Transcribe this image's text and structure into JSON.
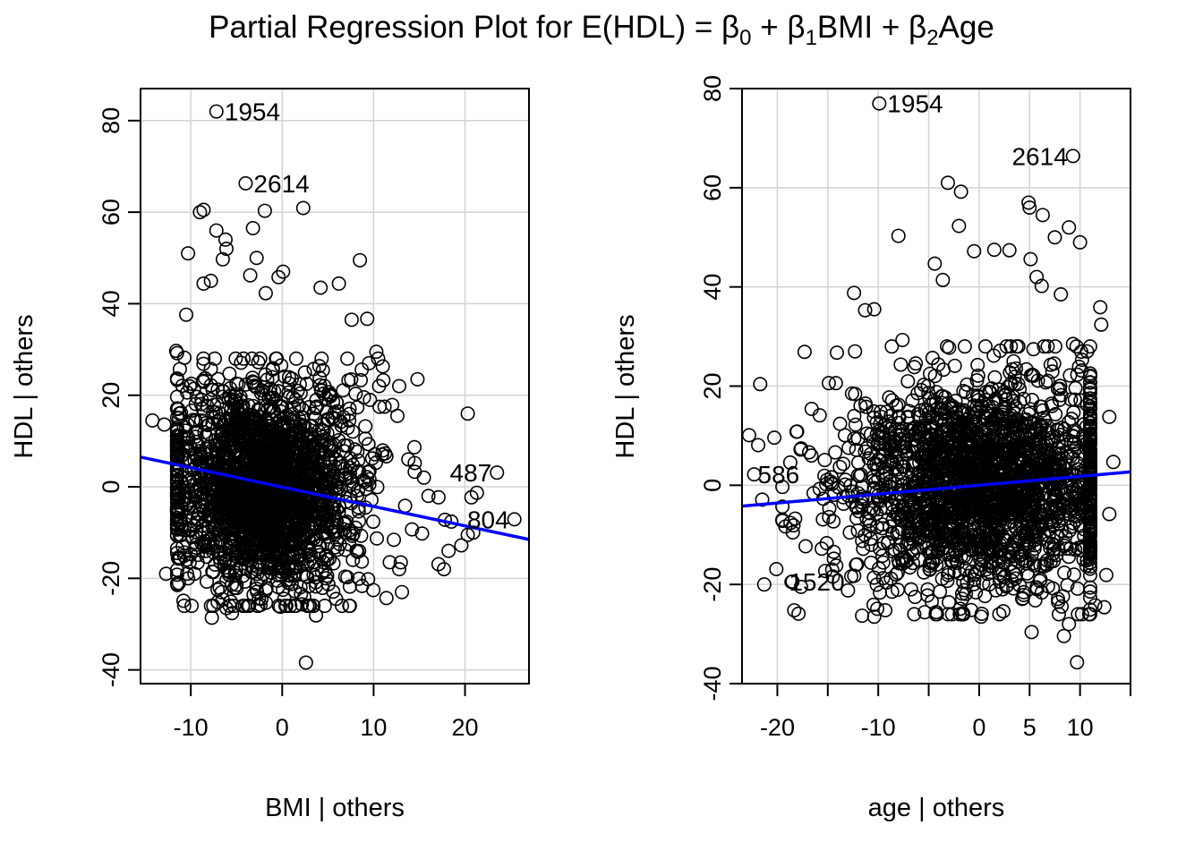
{
  "title_parts": {
    "prefix": "Partial Regression Plot for E(HDL) = ",
    "beta": "β",
    "sub0": "0",
    "plus1": " + ",
    "sub1": "1",
    "bmi": "BMI + ",
    "sub2": "2",
    "age": "Age"
  },
  "colors": {
    "points": "#000000",
    "fit_line": "#0000ff",
    "grid": "#d3d3d3",
    "frame": "#000000"
  },
  "chart_data": [
    {
      "type": "scatter",
      "xlabel": "BMI | others",
      "ylabel": "HDL  | others",
      "xlim": [
        -15.5,
        27
      ],
      "ylim": [
        -43,
        87
      ],
      "xticks": [
        -10,
        0,
        10,
        20
      ],
      "yticks": [
        -40,
        -20,
        0,
        20,
        40,
        60,
        80
      ],
      "grid": true,
      "fit_line": {
        "x": [
          -15.5,
          27
        ],
        "y": [
          6.5,
          -11.5
        ],
        "color": "#0000ff"
      },
      "labeled_points": [
        {
          "label": "1954",
          "x": -7.2,
          "y": 82.0
        },
        {
          "label": "2614",
          "x": -4.0,
          "y": 66.3
        },
        {
          "label": "487",
          "x": 23.5,
          "y": 3.1
        },
        {
          "label": "804",
          "x": 25.4,
          "y": -7.1
        }
      ],
      "cloud": {
        "center": [
          -2,
          0
        ],
        "spread": [
          5.0,
          11.0
        ],
        "count": 2200,
        "seed": 17
      },
      "extra_points": [
        [
          -9,
          60
        ],
        [
          -8.6,
          60.5
        ],
        [
          -10.3,
          51
        ],
        [
          -7.2,
          56
        ],
        [
          -6.2,
          54
        ],
        [
          -6.1,
          52
        ],
        [
          -6.5,
          49.7
        ],
        [
          -2.8,
          50
        ],
        [
          -1.9,
          60.3
        ],
        [
          2.3,
          60.9
        ],
        [
          -3.2,
          56.5
        ],
        [
          0.1,
          47
        ],
        [
          -0.4,
          45.8
        ],
        [
          8.5,
          49.5
        ],
        [
          4.2,
          43.5
        ],
        [
          6.2,
          44.4
        ],
        [
          -7.8,
          45
        ],
        [
          -8.6,
          44.4
        ],
        [
          -3.5,
          46.2
        ],
        [
          -1.8,
          42.3
        ],
        [
          7.6,
          36.5
        ],
        [
          9.3,
          36.7
        ],
        [
          10.3,
          29.5
        ],
        [
          11,
          26.3
        ],
        [
          14.8,
          23.5
        ],
        [
          12.8,
          22
        ],
        [
          10.6,
          22
        ],
        [
          9.5,
          27
        ],
        [
          8.7,
          25.6
        ],
        [
          9.6,
          19
        ],
        [
          11.2,
          17.5
        ],
        [
          12.6,
          15.5
        ],
        [
          13.8,
          6
        ],
        [
          14.5,
          5.2
        ],
        [
          15.5,
          2
        ],
        [
          16,
          -2
        ],
        [
          17.1,
          -2.3
        ],
        [
          17.8,
          -7.2
        ],
        [
          18.5,
          -7.6
        ],
        [
          19.6,
          -12.8
        ],
        [
          20.3,
          -10.5
        ],
        [
          20.9,
          -10
        ],
        [
          20.3,
          16
        ],
        [
          20.7,
          -2.3
        ],
        [
          21.3,
          -1.3
        ],
        [
          17.1,
          -16.9
        ],
        [
          17.7,
          -18
        ],
        [
          18.2,
          -14
        ],
        [
          15.3,
          -10.2
        ],
        [
          14.2,
          -9.3
        ],
        [
          13.1,
          -23
        ],
        [
          11.4,
          -24.3
        ],
        [
          12.8,
          -18
        ],
        [
          -14.2,
          14.5
        ],
        [
          -12.9,
          13.6
        ],
        [
          -12.7,
          -19
        ],
        [
          -10.4,
          -19
        ],
        [
          -10.3,
          -20
        ],
        [
          -11.1,
          -10.5
        ],
        [
          -11.5,
          3.5
        ],
        [
          -11.6,
          29.7
        ],
        [
          -11.5,
          29.2
        ],
        [
          -10.7,
          28.2
        ],
        [
          -11.2,
          25.7
        ],
        [
          -10.5,
          37.6
        ],
        [
          -11.3,
          15
        ],
        [
          -10.8,
          11
        ],
        [
          -7.7,
          -28.6
        ],
        [
          -6.1,
          -26.5
        ],
        [
          -5.5,
          -27.6
        ],
        [
          -0.2,
          -26.2
        ],
        [
          2.6,
          -38.4
        ],
        [
          3.7,
          -28.1
        ],
        [
          5.9,
          -24.5
        ],
        [
          7.4,
          -21.8
        ],
        [
          9.4,
          -20.2
        ]
      ]
    },
    {
      "type": "scatter",
      "xlabel": "age | others",
      "ylabel": "HDL  | others",
      "xlim": [
        -23.5,
        15
      ],
      "ylim": [
        -40,
        80
      ],
      "xticks": [
        -20,
        -10,
        0,
        5,
        10
      ],
      "extra_ticks": [
        -15,
        -5,
        15
      ],
      "yticks": [
        -40,
        -20,
        0,
        20,
        40,
        60,
        80
      ],
      "grid": true,
      "fit_line": {
        "x": [
          -23.5,
          15
        ],
        "y": [
          -4.2,
          2.7
        ],
        "color": "#0000ff"
      },
      "labeled_points": [
        {
          "label": "1954",
          "x": -9.9,
          "y": 77.0
        },
        {
          "label": "2614",
          "x": 9.3,
          "y": 66.4
        },
        {
          "label": "586",
          "x": -22.3,
          "y": 2.2
        },
        {
          "label": "1520",
          "x": -18.5,
          "y": -19.4
        }
      ],
      "cloud": {
        "center": [
          0.5,
          0
        ],
        "spread": [
          7.0,
          10.5
        ],
        "count": 2200,
        "seed": 29
      },
      "extra_points": [
        [
          -3.1,
          61
        ],
        [
          -1.8,
          59.2
        ],
        [
          -2,
          52.3
        ],
        [
          -8,
          50.3
        ],
        [
          4.9,
          57
        ],
        [
          5,
          56
        ],
        [
          6.3,
          54.5
        ],
        [
          8.9,
          52
        ],
        [
          10,
          49
        ],
        [
          7.5,
          50
        ],
        [
          -4.4,
          44.7
        ],
        [
          -0.5,
          47.2
        ],
        [
          1.5,
          47.5
        ],
        [
          3,
          47.4
        ],
        [
          5.1,
          45.6
        ],
        [
          -3.6,
          41.4
        ],
        [
          5.7,
          42
        ],
        [
          6.2,
          40.2
        ],
        [
          -12.4,
          38.8
        ],
        [
          8.1,
          38.5
        ],
        [
          -11.3,
          35.3
        ],
        [
          -10.4,
          35.5
        ],
        [
          -7.6,
          29.3
        ],
        [
          -12.3,
          27
        ],
        [
          -17.3,
          26.9
        ],
        [
          -21.7,
          20.4
        ],
        [
          -14.9,
          20.6
        ],
        [
          -14.2,
          20.6
        ],
        [
          -12.6,
          18.5
        ],
        [
          -16.6,
          15.4
        ],
        [
          -22.8,
          10.1
        ],
        [
          -21.9,
          8.1
        ],
        [
          -20.3,
          9.6
        ],
        [
          -18.1,
          10.8
        ],
        [
          -17.7,
          7.2
        ],
        [
          -15.3,
          5.1
        ],
        [
          -13.8,
          3.7
        ],
        [
          -12,
          2
        ],
        [
          -21.5,
          -2.9
        ],
        [
          -19.2,
          -8.3
        ],
        [
          -18.7,
          -7.6
        ],
        [
          -17.2,
          -12.3
        ],
        [
          -15.6,
          -12.8
        ],
        [
          -14.4,
          -14.8
        ],
        [
          -20.1,
          -16.9
        ],
        [
          -18.6,
          -19.5
        ],
        [
          -17.9,
          -25.9
        ],
        [
          -21.3,
          -20
        ],
        [
          -14.5,
          -18.4
        ],
        [
          -13,
          -21.2
        ],
        [
          -11.6,
          -26.3
        ],
        [
          -10.4,
          -26.5
        ],
        [
          -10.1,
          -24.9
        ],
        [
          -9.3,
          -25.2
        ],
        [
          -5.4,
          -25.6
        ],
        [
          -3,
          -23.6
        ],
        [
          -1.6,
          -25.8
        ],
        [
          0.2,
          -26.5
        ],
        [
          2.4,
          -25.4
        ],
        [
          5.2,
          -29.6
        ],
        [
          8.9,
          -28
        ],
        [
          8.4,
          -30.4
        ],
        [
          9.7,
          -35.7
        ],
        [
          12.4,
          -24.6
        ],
        [
          12.6,
          -18.1
        ],
        [
          11.5,
          -24.2
        ],
        [
          12.9,
          -5.8
        ],
        [
          13.3,
          4.7
        ],
        [
          12.9,
          13.8
        ],
        [
          12.1,
          32.4
        ],
        [
          12,
          35.9
        ],
        [
          10.7,
          27
        ],
        [
          9.3,
          28.5
        ],
        [
          11,
          20.8
        ],
        [
          10.2,
          25.3
        ]
      ]
    }
  ]
}
